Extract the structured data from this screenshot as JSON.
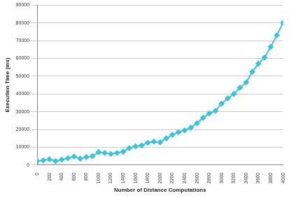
{
  "chart_data": {
    "type": "line",
    "x_label": "Number of Distance Computations",
    "y_label": "Execution Time (ms)",
    "x": [
      0,
      100,
      200,
      300,
      400,
      500,
      600,
      700,
      800,
      900,
      1000,
      1100,
      1200,
      1300,
      1400,
      1500,
      1600,
      1700,
      1800,
      1900,
      2000,
      2100,
      2200,
      2300,
      2400,
      2500,
      2600,
      2700,
      2800,
      2900,
      3000,
      3100,
      3200,
      3300,
      3400,
      3500,
      3600,
      3700,
      3800,
      3900,
      4000
    ],
    "values": [
      2200,
      2600,
      3200,
      2200,
      3000,
      3800,
      4800,
      3600,
      4500,
      5000,
      7200,
      6800,
      6200,
      6800,
      7500,
      9500,
      10500,
      11000,
      12500,
      13200,
      12800,
      15000,
      17000,
      18500,
      19500,
      21000,
      23500,
      26500,
      29000,
      30500,
      34500,
      37500,
      40000,
      43500,
      46500,
      52500,
      57000,
      60500,
      66500,
      73000,
      80000
    ],
    "color": "#3cc3dc",
    "marker": "diamond",
    "xlim": [
      0,
      4000
    ],
    "xticks": [
      0,
      200,
      400,
      600,
      800,
      1000,
      1200,
      1400,
      1600,
      1800,
      2000,
      2200,
      2400,
      2600,
      2800,
      3000,
      3200,
      3400,
      3600,
      3800,
      4000
    ],
    "ylim": [
      0,
      90000
    ],
    "yticks": [
      0,
      10000,
      20000,
      30000,
      40000,
      50000,
      60000,
      70000,
      80000,
      90000
    ],
    "grid": true
  }
}
